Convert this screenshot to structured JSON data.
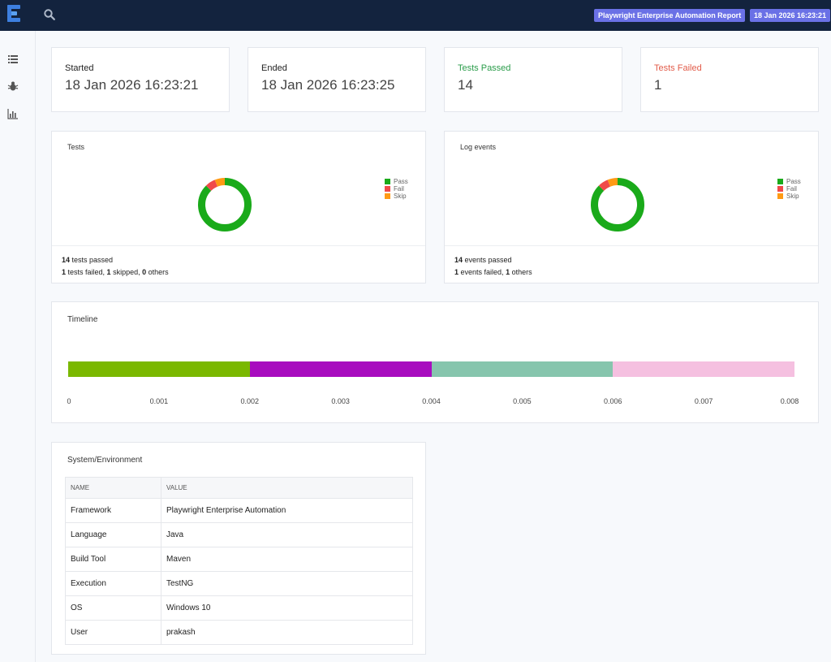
{
  "header": {
    "report_name": "Playwright Enterprise Automation Report",
    "timestamp": "18 Jan 2026 16:23:21"
  },
  "sidebar": {
    "items": [
      {
        "icon": "list-icon"
      },
      {
        "icon": "bug-icon"
      },
      {
        "icon": "bar-chart-icon"
      }
    ]
  },
  "stats": {
    "started_label": "Started",
    "started_value": "18 Jan 2026 16:23:21",
    "ended_label": "Ended",
    "ended_value": "18 Jan 2026 16:23:25",
    "passed_label": "Tests Passed",
    "passed_value": "14",
    "failed_label": "Tests Failed",
    "failed_value": "1"
  },
  "colors": {
    "pass": "#1aaa1a",
    "fail": "#f04a4a",
    "skip": "#ff9a14"
  },
  "tests_panel": {
    "title": "Tests",
    "legend": [
      "Pass",
      "Fail",
      "Skip"
    ],
    "passed_count": "14",
    "passed_text": " tests passed",
    "failed_count": "1",
    "failed_text": " tests failed, ",
    "skipped_count": "1",
    "skipped_text": " skipped, ",
    "others_count": "0",
    "others_text": " others"
  },
  "log_panel": {
    "title": "Log events",
    "legend": [
      "Pass",
      "Fail",
      "Skip"
    ],
    "passed_count": "14",
    "passed_text": " events passed",
    "failed_count": "1",
    "failed_text": " events failed, ",
    "others_count": "1",
    "others_text": " others"
  },
  "chart_data": [
    {
      "type": "pie",
      "title": "Tests",
      "categories": [
        "Pass",
        "Fail",
        "Skip"
      ],
      "values": [
        14,
        1,
        1
      ]
    },
    {
      "type": "pie",
      "title": "Log events",
      "categories": [
        "Pass",
        "Fail",
        "Skip"
      ],
      "values": [
        14,
        1,
        1
      ]
    },
    {
      "type": "bar",
      "title": "Timeline",
      "orientation": "horizontal-stacked",
      "segments": [
        {
          "start": 0,
          "end": 0.002,
          "color": "#7ab800"
        },
        {
          "start": 0.002,
          "end": 0.004,
          "color": "#a80cbf"
        },
        {
          "start": 0.004,
          "end": 0.006,
          "color": "#86c5ad"
        },
        {
          "start": 0.006,
          "end": 0.008,
          "color": "#f5c0e0"
        }
      ],
      "xticks": [
        "0",
        "0.001",
        "0.002",
        "0.003",
        "0.004",
        "0.005",
        "0.006",
        "0.007",
        "0.008"
      ],
      "xlim": [
        0,
        0.008
      ]
    }
  ],
  "timeline": {
    "title": "Timeline"
  },
  "environment": {
    "title": "System/Environment",
    "columns": [
      "NAME",
      "VALUE"
    ],
    "rows": [
      [
        "Framework",
        "Playwright Enterprise Automation"
      ],
      [
        "Language",
        "Java"
      ],
      [
        "Build Tool",
        "Maven"
      ],
      [
        "Execution",
        "TestNG"
      ],
      [
        "OS",
        "Windows 10"
      ],
      [
        "User",
        "prakash"
      ]
    ]
  }
}
